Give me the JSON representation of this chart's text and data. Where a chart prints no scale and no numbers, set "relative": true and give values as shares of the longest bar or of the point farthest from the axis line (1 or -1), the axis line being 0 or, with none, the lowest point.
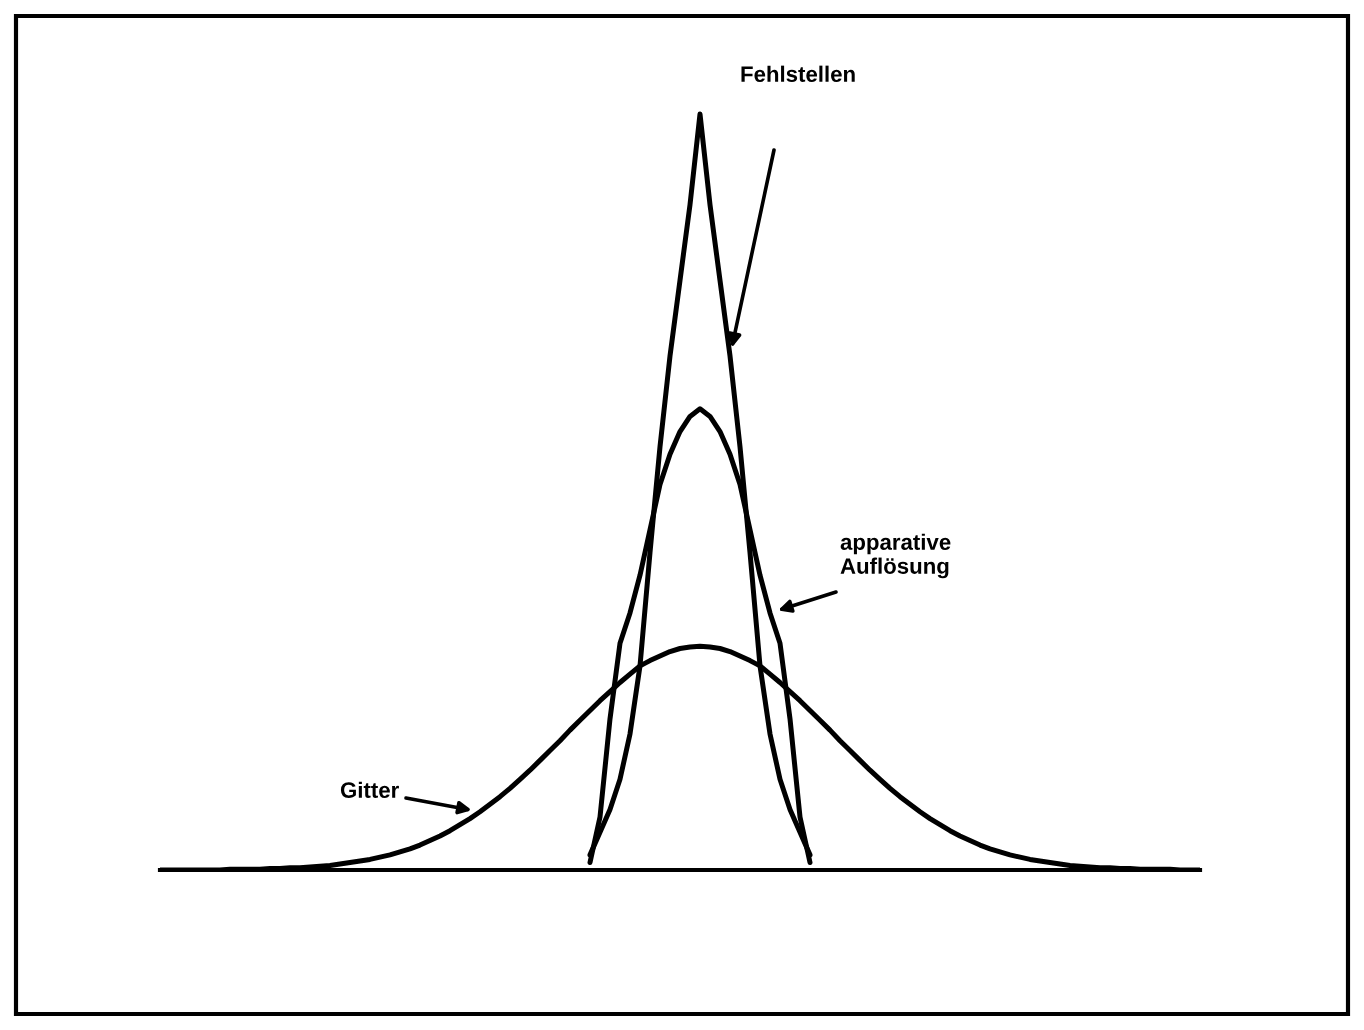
{
  "chart_data": {
    "type": "line",
    "relative": true,
    "categories": [
      null,
      null,
      null,
      null,
      null,
      null,
      null,
      null,
      null,
      null,
      null,
      null,
      null,
      null,
      null,
      null,
      null,
      null,
      null,
      null,
      null,
      null,
      null,
      null,
      null,
      null,
      null,
      null,
      null,
      null,
      null,
      null,
      null,
      null,
      null,
      null,
      null,
      null,
      null,
      null,
      null,
      null,
      null,
      null,
      null,
      null,
      null,
      null,
      null,
      null,
      null,
      null,
      null,
      null,
      null,
      null,
      null,
      null,
      null,
      null,
      null,
      null,
      null,
      null,
      null,
      null,
      null,
      null,
      null,
      null,
      null,
      null,
      null,
      null,
      null,
      null,
      null,
      null,
      null,
      null,
      null,
      null,
      null,
      null,
      null,
      null,
      null,
      null,
      null,
      null,
      null,
      null,
      null,
      null,
      null,
      null,
      null,
      null,
      null,
      null,
      null,
      null,
      null,
      null,
      null
    ],
    "series": [
      {
        "name": "Fehlstellen",
        "color": "#000000",
        "values": [
          null,
          null,
          null,
          null,
          null,
          null,
          null,
          null,
          null,
          null,
          null,
          null,
          null,
          null,
          null,
          null,
          null,
          null,
          null,
          null,
          null,
          null,
          null,
          null,
          null,
          null,
          null,
          null,
          null,
          null,
          null,
          null,
          null,
          null,
          null,
          null,
          null,
          null,
          null,
          null,
          null,
          null,
          null,
          0.02,
          0.05,
          0.08,
          0.12,
          0.18,
          0.27,
          0.42,
          0.56,
          0.68,
          0.78,
          0.88,
          1,
          0.88,
          0.78,
          0.68,
          0.56,
          0.42,
          0.27,
          0.18,
          0.12,
          0.08,
          0.05,
          0.02,
          null,
          null,
          null,
          null,
          null,
          null,
          null,
          null,
          null,
          null,
          null,
          null,
          null,
          null,
          null,
          null,
          null,
          null,
          null,
          null,
          null,
          null,
          null,
          null,
          null,
          null,
          null,
          null,
          null,
          null,
          null,
          null,
          null,
          null,
          null,
          null,
          null,
          null,
          null
        ]
      },
      {
        "name": "apparative\nAuflösung",
        "color": "#000000",
        "values": [
          null,
          null,
          null,
          null,
          null,
          null,
          null,
          null,
          null,
          null,
          null,
          null,
          null,
          null,
          null,
          null,
          null,
          null,
          null,
          null,
          null,
          null,
          null,
          null,
          null,
          null,
          null,
          null,
          null,
          null,
          null,
          null,
          null,
          null,
          null,
          null,
          null,
          null,
          null,
          null,
          null,
          null,
          null,
          0.01,
          0.07,
          0.2,
          0.3,
          0.34,
          0.39,
          0.45,
          0.51,
          0.55,
          0.58,
          0.6,
          0.61,
          0.6,
          0.58,
          0.55,
          0.51,
          0.45,
          0.39,
          0.34,
          0.3,
          0.2,
          0.07,
          0.01,
          null,
          null,
          null,
          null,
          null,
          null,
          null,
          null,
          null,
          null,
          null,
          null,
          null,
          null,
          null,
          null,
          null,
          null,
          null,
          null,
          null,
          null,
          null,
          null,
          null,
          null,
          null,
          null,
          null,
          null,
          null,
          null,
          null,
          null,
          null,
          null,
          null,
          null,
          null
        ]
      },
      {
        "name": "Gitter",
        "color": "#000000",
        "values": [
          0,
          0,
          0,
          0,
          0,
          0,
          0,
          0.001,
          0.001,
          0.001,
          0.001,
          0.002,
          0.002,
          0.003,
          0.003,
          0.004,
          0.005,
          0.006,
          0.008,
          0.01,
          0.012,
          0.014,
          0.017,
          0.02,
          0.024,
          0.028,
          0.033,
          0.039,
          0.045,
          0.052,
          0.06,
          0.068,
          0.077,
          0.087,
          0.097,
          0.108,
          0.12,
          0.132,
          0.145,
          0.158,
          0.171,
          0.185,
          0.198,
          0.211,
          0.224,
          0.236,
          0.248,
          0.259,
          0.27,
          0.277,
          0.283,
          0.289,
          0.293,
          0.295,
          0.296,
          0.295,
          0.293,
          0.289,
          0.283,
          0.277,
          0.27,
          0.259,
          0.248,
          0.236,
          0.224,
          0.211,
          0.198,
          0.185,
          0.171,
          0.158,
          0.145,
          0.132,
          0.12,
          0.108,
          0.097,
          0.087,
          0.077,
          0.068,
          0.06,
          0.052,
          0.045,
          0.039,
          0.033,
          0.028,
          0.024,
          0.02,
          0.017,
          0.014,
          0.012,
          0.01,
          0.008,
          0.006,
          0.005,
          0.004,
          0.003,
          0.003,
          0.002,
          0.002,
          0.001,
          0.001,
          0.001,
          0.001,
          0,
          0,
          0
        ]
      }
    ]
  }
}
